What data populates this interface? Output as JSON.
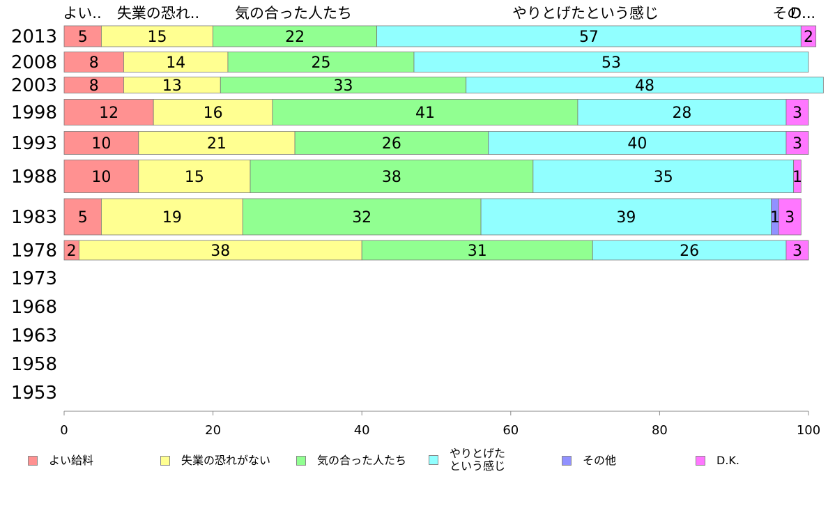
{
  "chart_data": {
    "type": "bar",
    "orientation": "horizontal",
    "stacked": true,
    "categories": [
      "2013",
      "2008",
      "2003",
      "1998",
      "1993",
      "1988",
      "1983",
      "1978",
      "1973",
      "1968",
      "1963",
      "1958",
      "1953"
    ],
    "series": [
      {
        "name": "よい給料",
        "short_label": "よい..",
        "color": "#ff9191",
        "values": [
          5,
          8,
          8,
          12,
          10,
          10,
          5,
          2,
          null,
          null,
          null,
          null,
          null
        ]
      },
      {
        "name": "失業の恐れがない",
        "short_label": "失業の恐れ..",
        "color": "#ffff91",
        "values": [
          15,
          14,
          13,
          16,
          21,
          15,
          19,
          38,
          null,
          null,
          null,
          null,
          null
        ]
      },
      {
        "name": "気の合った人たち",
        "short_label": "気の合った人たち",
        "color": "#91ff91",
        "values": [
          22,
          25,
          33,
          41,
          26,
          38,
          32,
          31,
          null,
          null,
          null,
          null,
          null
        ]
      },
      {
        "name": "やりとげた\nという感じ",
        "short_label": "やりとげたという感じ",
        "color": "#91ffff",
        "values": [
          57,
          53,
          48,
          28,
          40,
          35,
          39,
          26,
          null,
          null,
          null,
          null,
          null
        ]
      },
      {
        "name": "その他",
        "short_label": "その..",
        "color": "#9191ff",
        "values": [
          0,
          0,
          0,
          0,
          0,
          0,
          1,
          0,
          null,
          null,
          null,
          null,
          null
        ]
      },
      {
        "name": "D.K.",
        "short_label": "D...",
        "color": "#ff77ff",
        "values": [
          2,
          0,
          0,
          3,
          3,
          1,
          3,
          3,
          null,
          null,
          null,
          null,
          null
        ]
      }
    ],
    "xlim": [
      0,
      100
    ],
    "xticks": [
      0,
      20,
      40,
      60,
      80,
      100
    ],
    "legend_position": "bottom"
  }
}
